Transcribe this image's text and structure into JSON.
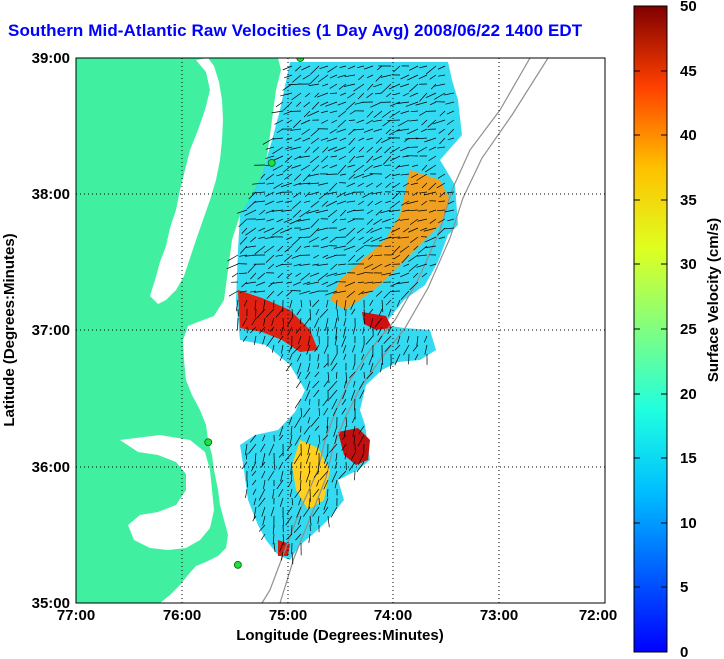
{
  "title": "Southern Mid-Atlantic Raw Velocities (1 Day Avg) 2008/06/22 1400 EDT",
  "map": {
    "x_axis": {
      "label": "Longitude (Degrees:Minutes)",
      "ticks": [
        "77:00",
        "76:00",
        "75:00",
        "74:00",
        "73:00",
        "72:00"
      ],
      "range": [
        -77,
        -72
      ]
    },
    "y_axis": {
      "label": "Latitude (Degrees:Minutes)",
      "ticks": [
        "35:00",
        "36:00",
        "37:00",
        "38:00",
        "39:00"
      ],
      "range": [
        35,
        39
      ]
    },
    "grid": "dotted",
    "land_color": "#40f0a0",
    "stations": [
      {
        "lon": -74.88,
        "lat": 39.0
      },
      {
        "lon": -75.15,
        "lat": 38.23
      },
      {
        "lon": -75.75,
        "lat": 36.18
      },
      {
        "lon": -75.47,
        "lat": 35.28
      }
    ]
  },
  "colorbar": {
    "label": "Surface Velocity (cm/s)",
    "ticks": [
      "0",
      "5",
      "10",
      "15",
      "20",
      "25",
      "30",
      "35",
      "40",
      "45",
      "50"
    ],
    "range": [
      0,
      50
    ],
    "colormap": "jet"
  }
}
